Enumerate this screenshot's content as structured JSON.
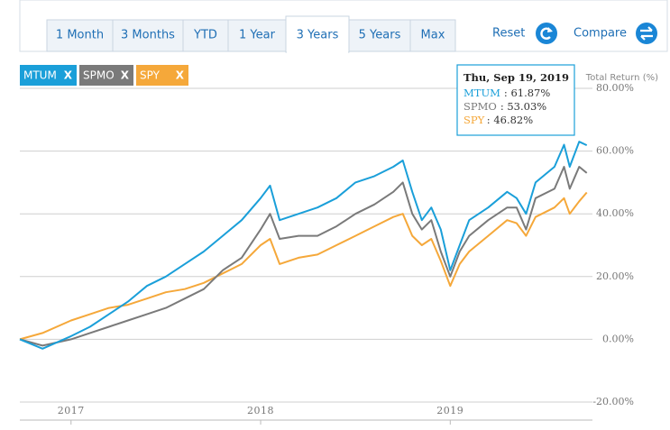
{
  "toolbar": {
    "ranges": [
      "1 Month",
      "3 Months",
      "YTD",
      "1 Year",
      "3 Years",
      "5 Years",
      "Max"
    ],
    "active_range": 4,
    "reset": "Reset",
    "compare": "Compare"
  },
  "chart_data": {
    "type": "line",
    "y_axis_title": "Total Return (%)",
    "remove_label": "X",
    "x": [
      2016.73,
      2016.85,
      2017.0,
      2017.1,
      2017.2,
      2017.3,
      2017.4,
      2017.5,
      2017.6,
      2017.7,
      2017.8,
      2017.9,
      2018.0,
      2018.05,
      2018.1,
      2018.2,
      2018.3,
      2018.4,
      2018.5,
      2018.6,
      2018.7,
      2018.75,
      2018.8,
      2018.85,
      2018.9,
      2018.95,
      2019.0,
      2019.05,
      2019.1,
      2019.2,
      2019.3,
      2019.35,
      2019.4,
      2019.45,
      2019.55,
      2019.6,
      2019.63,
      2019.68,
      2019.72
    ],
    "series": [
      {
        "name": "MTUM",
        "color": "#1a9fd9",
        "values": [
          0,
          -3,
          1,
          4,
          8,
          12,
          17,
          20,
          24,
          28,
          33,
          38,
          45,
          49,
          38,
          40,
          42,
          45,
          50,
          52,
          55,
          57,
          47,
          38,
          42,
          35,
          22,
          30,
          38,
          42,
          47,
          45,
          40,
          50,
          55,
          62,
          55,
          63,
          61.87
        ]
      },
      {
        "name": "SPMO",
        "color": "#7a7a7a",
        "values": [
          0,
          -2,
          0,
          2,
          4,
          6,
          8,
          10,
          13,
          16,
          22,
          26,
          35,
          40,
          32,
          33,
          33,
          36,
          40,
          43,
          47,
          50,
          40,
          35,
          38,
          28,
          20,
          28,
          33,
          38,
          42,
          42,
          35,
          45,
          48,
          55,
          48,
          55,
          53.03
        ]
      },
      {
        "name": "SPY",
        "color": "#f5a83a",
        "values": [
          0,
          2,
          6,
          8,
          10,
          11,
          13,
          15,
          16,
          18,
          21,
          24,
          30,
          32,
          24,
          26,
          27,
          30,
          33,
          36,
          39,
          40,
          33,
          30,
          32,
          25,
          17,
          24,
          28,
          33,
          38,
          37,
          33,
          39,
          42,
          45,
          40,
          44,
          46.82
        ]
      }
    ],
    "xlim": [
      2016.73,
      2019.75
    ],
    "xticks": [
      2017,
      2018,
      2019
    ],
    "ylim": [
      -20,
      80
    ],
    "yticks": [
      {
        "value": -20,
        "label": "-20.00%"
      },
      {
        "value": 0,
        "label": "0.00%"
      },
      {
        "value": 20,
        "label": "20.00%"
      },
      {
        "value": 40,
        "label": "40.00%"
      },
      {
        "value": 60,
        "label": "60.00%"
      },
      {
        "value": 80,
        "label": "80.00%"
      }
    ],
    "grid": true,
    "tooltip": {
      "title": "Thu, Sep 19, 2019",
      "entries": [
        {
          "name": "MTUM",
          "value": ": 61.87%"
        },
        {
          "name": "SPMO",
          "value": ": 53.03%"
        },
        {
          "name": "SPY",
          "value": ": 46.82%"
        }
      ]
    }
  }
}
